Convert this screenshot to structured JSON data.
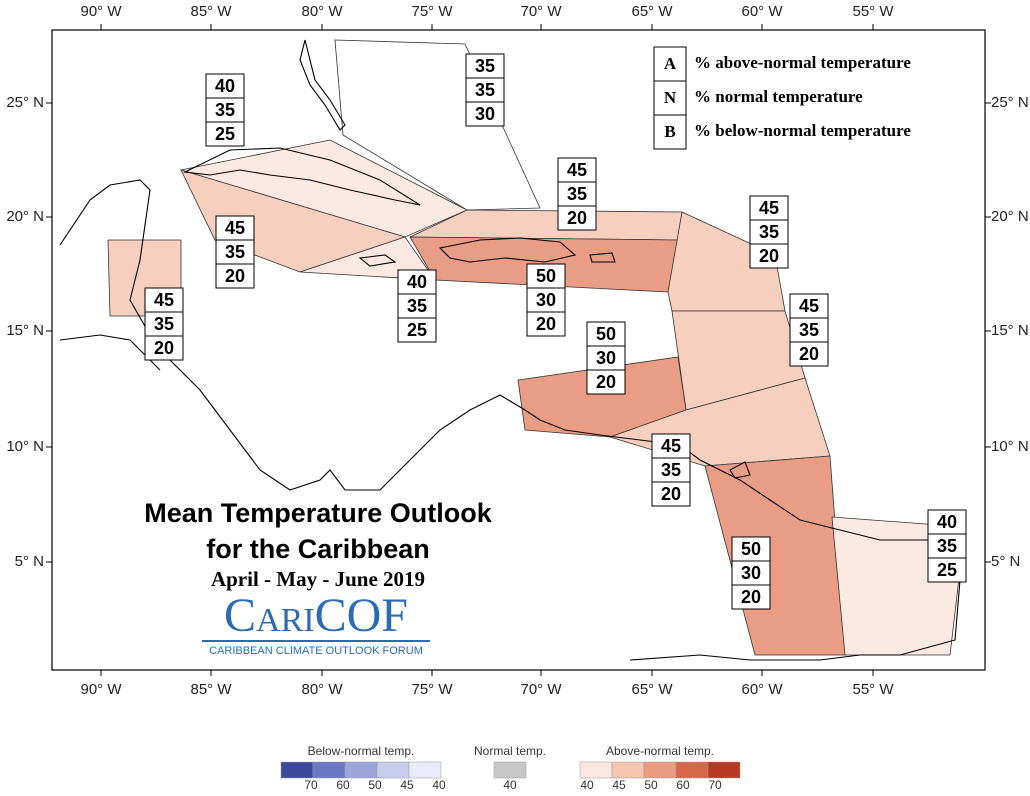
{
  "axes": {
    "lon_labels": [
      "90° W",
      "85° W",
      "80° W",
      "75° W",
      "70° W",
      "65° W",
      "60° W",
      "55° W"
    ],
    "lat_labels": [
      "25° N",
      "20° N",
      "15° N",
      "10° N",
      "5° N"
    ]
  },
  "key": {
    "rows": [
      {
        "letter": "A",
        "text": "% above-normal temperature"
      },
      {
        "letter": "N",
        "text": "% normal temperature"
      },
      {
        "letter": "B",
        "text": "% below-normal temperature"
      }
    ]
  },
  "regions": [
    {
      "values": [
        35,
        35,
        30
      ],
      "color": "none"
    },
    {
      "values": [
        40,
        35,
        25
      ],
      "color": "#fce9e1"
    },
    {
      "values": [
        45,
        35,
        20
      ],
      "color": "#f7cfbf"
    },
    {
      "values": [
        45,
        35,
        20
      ],
      "color": "#f7cfbf"
    },
    {
      "values": [
        40,
        35,
        25
      ],
      "color": "#fce9e1"
    },
    {
      "values": [
        50,
        30,
        20
      ],
      "color": "#e99d84"
    },
    {
      "values": [
        45,
        35,
        20
      ],
      "color": "#f7cfbf"
    },
    {
      "values": [
        45,
        35,
        20
      ],
      "color": "#f7cfbf"
    },
    {
      "values": [
        45,
        35,
        20
      ],
      "color": "#f7cfbf"
    },
    {
      "values": [
        50,
        30,
        20
      ],
      "color": "#e99d84"
    },
    {
      "values": [
        45,
        35,
        20
      ],
      "color": "#f7cfbf"
    },
    {
      "values": [
        50,
        30,
        20
      ],
      "color": "#e99d84"
    },
    {
      "values": [
        40,
        35,
        25
      ],
      "color": "#fce9e1"
    }
  ],
  "title": {
    "line1": "Mean Temperature Outlook",
    "line2": "for the Caribbean",
    "period": "April - May - June 2019"
  },
  "logo": {
    "name": "CariCOF",
    "tagline": "CARIBBEAN CLIMATE OUTLOOK FORUM"
  },
  "colorbar": {
    "below": {
      "title": "Below-normal temp.",
      "labels": [
        70,
        60,
        50,
        45,
        40
      ],
      "colors": [
        "#3b4a9c",
        "#6a78c6",
        "#9ca5d9",
        "#c7cceb",
        "#e9ebf8"
      ]
    },
    "normal": {
      "title": "Normal temp.",
      "labels": [
        40
      ],
      "colors": [
        "#c8c8c8"
      ]
    },
    "above": {
      "title": "Above-normal temp.",
      "labels": [
        40,
        45,
        50,
        60,
        70
      ],
      "colors": [
        "#fbe8e0",
        "#f6c5b2",
        "#eb9b80",
        "#d8664b",
        "#b83a24"
      ]
    }
  }
}
